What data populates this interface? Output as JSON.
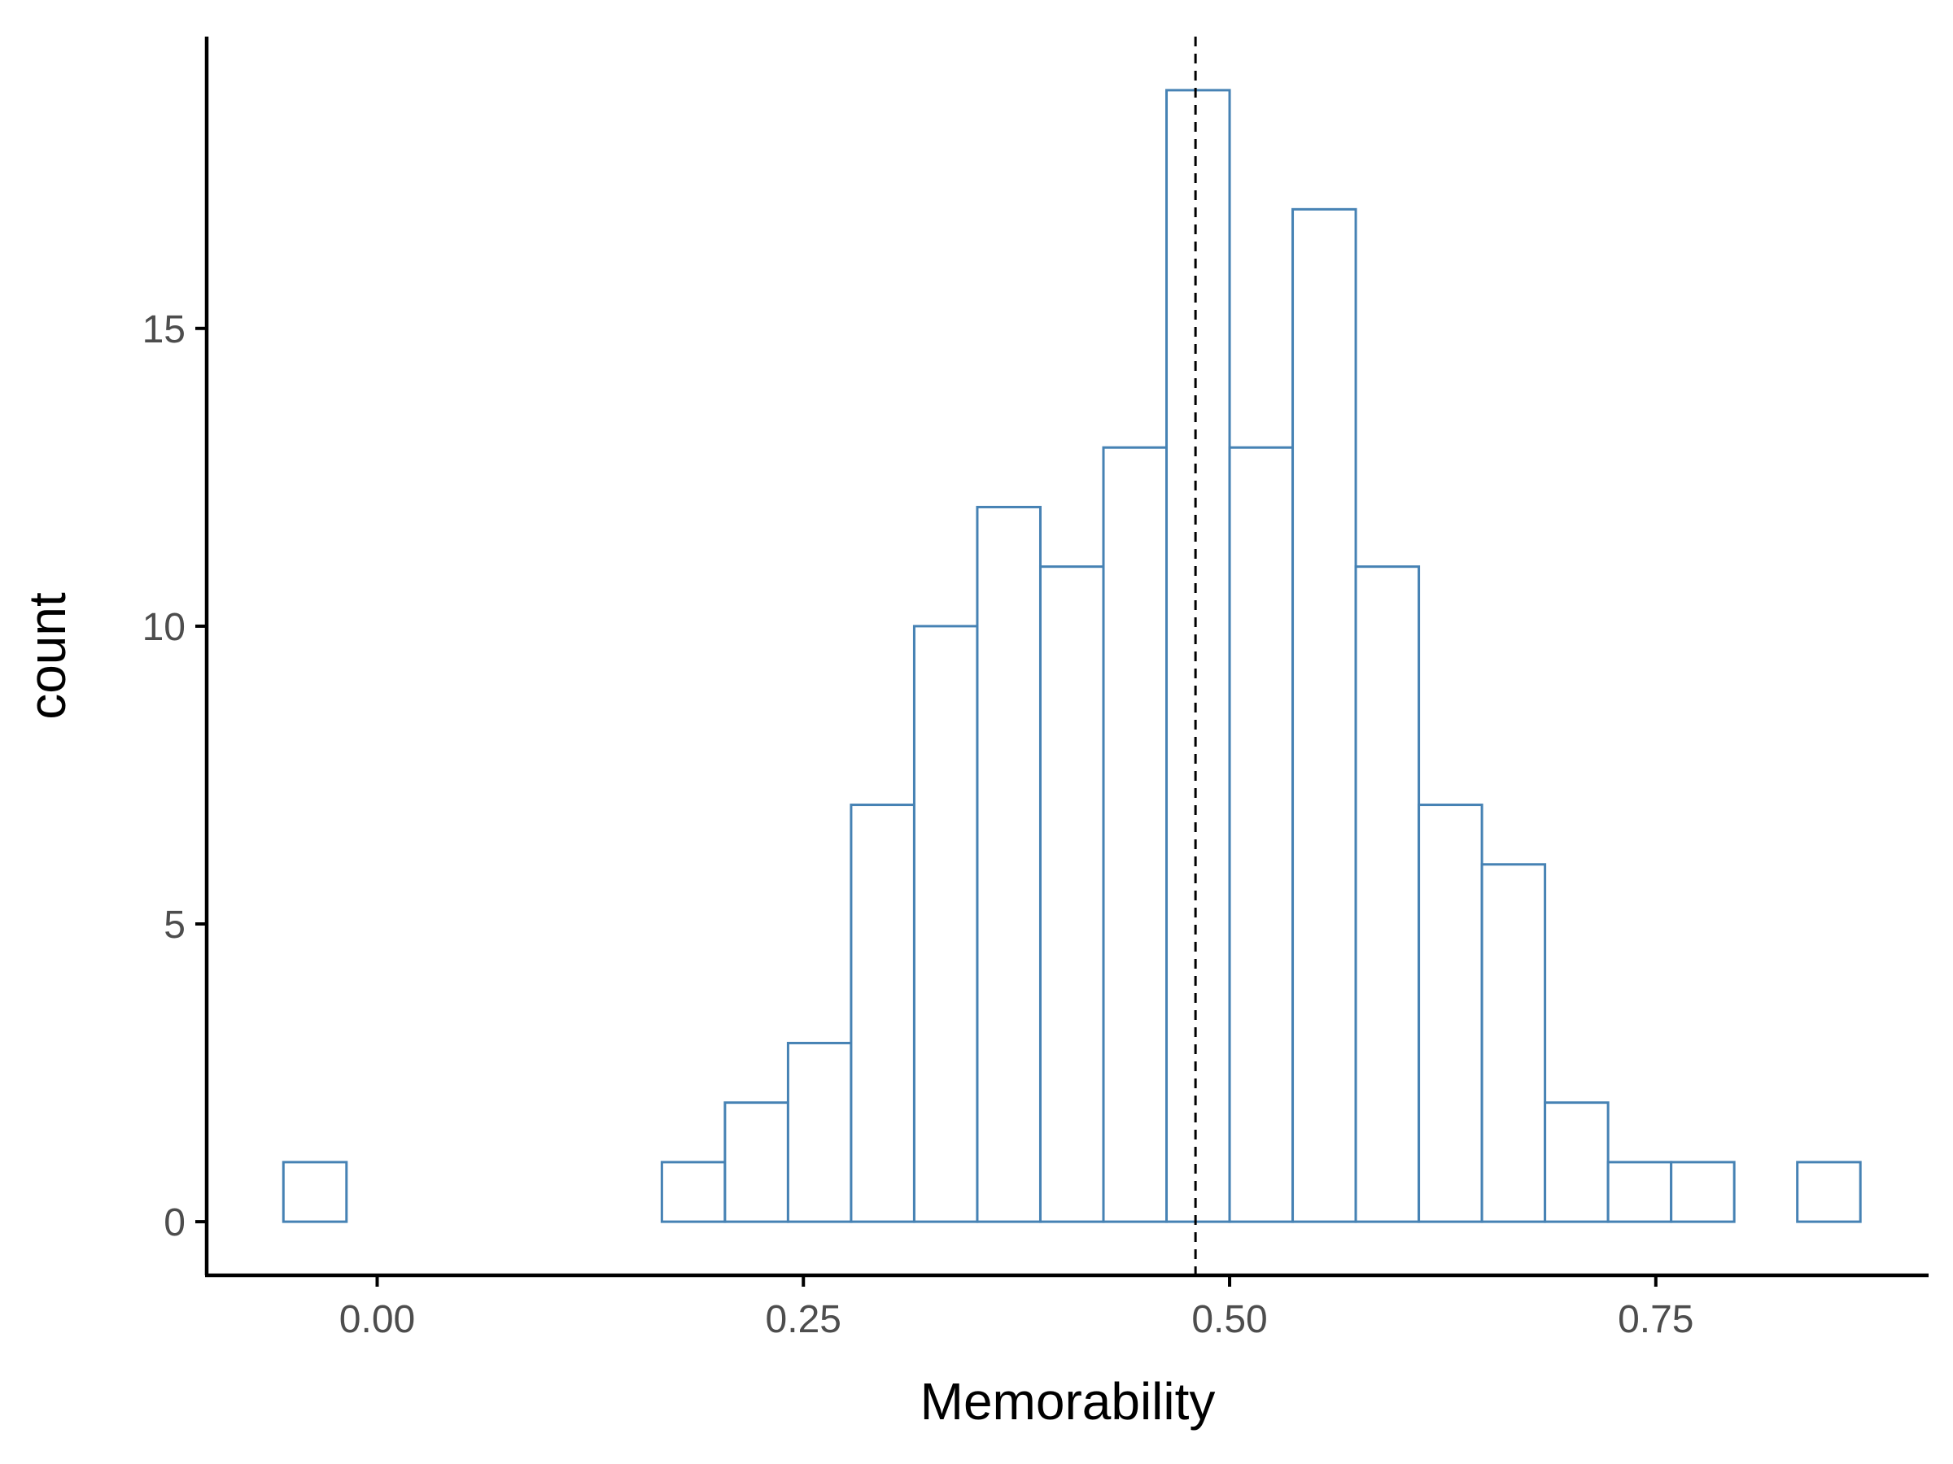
{
  "chart_data": {
    "type": "bar",
    "subtype": "histogram",
    "xlabel": "Memorability",
    "ylabel": "count",
    "xlim": [
      -0.1,
      0.91
    ],
    "ylim": [
      -0.9,
      19.9
    ],
    "x_ticks": [
      0.0,
      0.25,
      0.5,
      0.75
    ],
    "x_tick_labels": [
      "0.00",
      "0.25",
      "0.50",
      "0.75"
    ],
    "y_ticks": [
      0,
      5,
      10,
      15
    ],
    "y_tick_labels": [
      "0",
      "5",
      "10",
      "15"
    ],
    "bins": [
      {
        "x0": -0.055,
        "x1": -0.018,
        "count": 1
      },
      {
        "x0": -0.018,
        "x1": 0.019,
        "count": 0
      },
      {
        "x0": 0.019,
        "x1": 0.056,
        "count": 0
      },
      {
        "x0": 0.056,
        "x1": 0.093,
        "count": 0
      },
      {
        "x0": 0.093,
        "x1": 0.13,
        "count": 0
      },
      {
        "x0": 0.13,
        "x1": 0.167,
        "count": 0
      },
      {
        "x0": 0.167,
        "x1": 0.204,
        "count": 1
      },
      {
        "x0": 0.204,
        "x1": 0.241,
        "count": 2
      },
      {
        "x0": 0.241,
        "x1": 0.278,
        "count": 3
      },
      {
        "x0": 0.278,
        "x1": 0.315,
        "count": 7
      },
      {
        "x0": 0.315,
        "x1": 0.352,
        "count": 10
      },
      {
        "x0": 0.352,
        "x1": 0.389,
        "count": 12
      },
      {
        "x0": 0.389,
        "x1": 0.426,
        "count": 11
      },
      {
        "x0": 0.426,
        "x1": 0.463,
        "count": 13
      },
      {
        "x0": 0.463,
        "x1": 0.5,
        "count": 19
      },
      {
        "x0": 0.5,
        "x1": 0.537,
        "count": 13
      },
      {
        "x0": 0.537,
        "x1": 0.574,
        "count": 17
      },
      {
        "x0": 0.574,
        "x1": 0.611,
        "count": 11
      },
      {
        "x0": 0.611,
        "x1": 0.648,
        "count": 7
      },
      {
        "x0": 0.648,
        "x1": 0.685,
        "count": 6
      },
      {
        "x0": 0.685,
        "x1": 0.722,
        "count": 2
      },
      {
        "x0": 0.722,
        "x1": 0.759,
        "count": 1
      },
      {
        "x0": 0.759,
        "x1": 0.796,
        "count": 1
      },
      {
        "x0": 0.796,
        "x1": 0.833,
        "count": 0
      },
      {
        "x0": 0.833,
        "x1": 0.87,
        "count": 1
      }
    ],
    "reference_line": {
      "x": 0.48,
      "style": "dashed",
      "color": "#000000"
    },
    "bar_outline_color": "#4682b4",
    "bar_fill_color": "#ffffff",
    "grid": false,
    "legend": "none"
  }
}
